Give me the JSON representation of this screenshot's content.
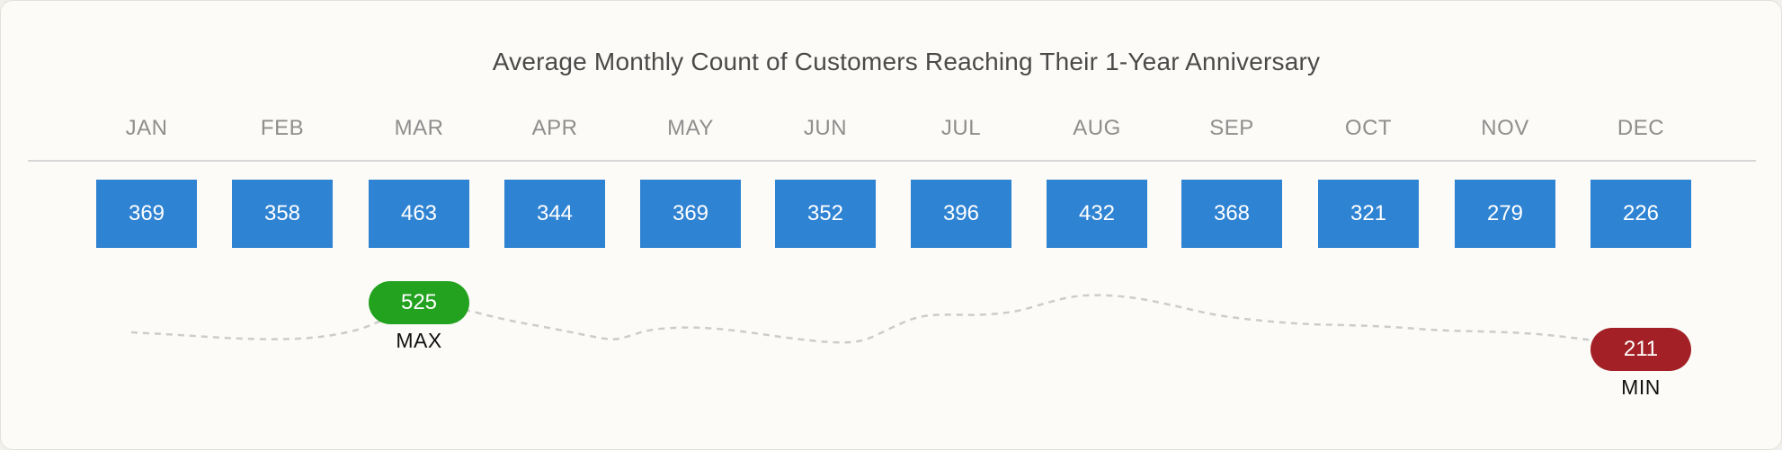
{
  "chart_data": {
    "type": "table",
    "title": "Average Monthly Count of Customers Reaching Their 1-Year Anniversary",
    "categories": [
      "JAN",
      "FEB",
      "MAR",
      "APR",
      "MAY",
      "JUN",
      "JUL",
      "AUG",
      "SEP",
      "OCT",
      "NOV",
      "DEC"
    ],
    "values": [
      369,
      358,
      463,
      344,
      369,
      352,
      396,
      432,
      368,
      321,
      279,
      226
    ],
    "trend": {
      "line_style": "dashed",
      "color": "#cccccc",
      "max": {
        "label": "MAX",
        "value": "525",
        "month": "MAR",
        "color": "#22a21f"
      },
      "min": {
        "label": "MIN",
        "value": "211",
        "month": "DEC",
        "color": "#a32126"
      }
    },
    "box_color": "#2f83d3"
  }
}
